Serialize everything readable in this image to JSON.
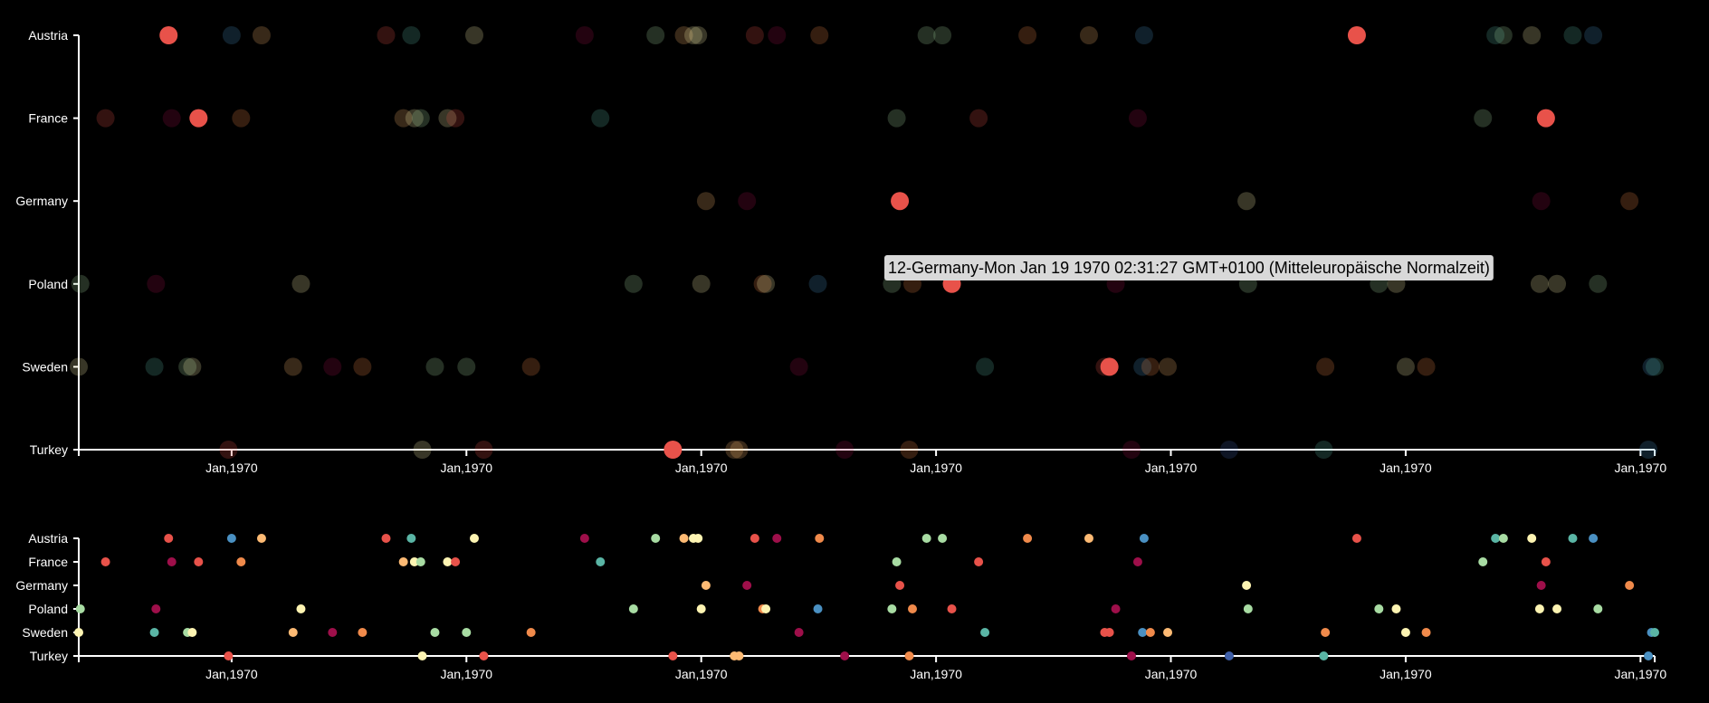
{
  "chart_data": {
    "type": "scatter",
    "title": "",
    "categories": [
      "Austria",
      "France",
      "Germany",
      "Poland",
      "Sweden",
      "Turkey"
    ],
    "x_tick_labels": [
      "Jan,1970",
      "Jan,1970",
      "Jan,1970",
      "Jan,1970",
      "Jan,1970",
      "Jan,1970",
      "Jan,1970"
    ],
    "x_range": [
      0,
      100
    ],
    "x_tick_positions": [
      9.7,
      24.6,
      39.5,
      54.4,
      69.3,
      84.2,
      99.1
    ],
    "colors": [
      "#e8524a",
      "#9e0f4a",
      "#f08a4b",
      "#fdba74",
      "#fdf4b2",
      "#a8dca3",
      "#5ab5a5",
      "#4a90c2",
      "#3f5fa8"
    ],
    "tooltip": "12-Germany-Mon Jan 19 1970 02:31:27 GMT+0100 (Mitteleuropäische Normalzeit)",
    "points": [
      {
        "cat": "Austria",
        "x": 5.7,
        "c": 0,
        "hl": true
      },
      {
        "cat": "Austria",
        "x": 9.7,
        "c": 7
      },
      {
        "cat": "Austria",
        "x": 11.6,
        "c": 3
      },
      {
        "cat": "Austria",
        "x": 19.5,
        "c": 0
      },
      {
        "cat": "Austria",
        "x": 21.1,
        "c": 6
      },
      {
        "cat": "Austria",
        "x": 25.1,
        "c": 4
      },
      {
        "cat": "Austria",
        "x": 32.1,
        "c": 1
      },
      {
        "cat": "Austria",
        "x": 36.6,
        "c": 5
      },
      {
        "cat": "Austria",
        "x": 38.4,
        "c": 3
      },
      {
        "cat": "Austria",
        "x": 39.0,
        "c": 4
      },
      {
        "cat": "Austria",
        "x": 39.3,
        "c": 4
      },
      {
        "cat": "Austria",
        "x": 42.9,
        "c": 0
      },
      {
        "cat": "Austria",
        "x": 44.3,
        "c": 1
      },
      {
        "cat": "Austria",
        "x": 47.0,
        "c": 2
      },
      {
        "cat": "Austria",
        "x": 53.8,
        "c": 5
      },
      {
        "cat": "Austria",
        "x": 54.8,
        "c": 5
      },
      {
        "cat": "Austria",
        "x": 60.2,
        "c": 2
      },
      {
        "cat": "Austria",
        "x": 64.1,
        "c": 3
      },
      {
        "cat": "Austria",
        "x": 67.6,
        "c": 7
      },
      {
        "cat": "Austria",
        "x": 81.1,
        "c": 0,
        "hl": true
      },
      {
        "cat": "Austria",
        "x": 89.9,
        "c": 6
      },
      {
        "cat": "Austria",
        "x": 90.4,
        "c": 5
      },
      {
        "cat": "Austria",
        "x": 92.2,
        "c": 4
      },
      {
        "cat": "Austria",
        "x": 94.8,
        "c": 6
      },
      {
        "cat": "Austria",
        "x": 96.1,
        "c": 7
      },
      {
        "cat": "France",
        "x": 1.7,
        "c": 0
      },
      {
        "cat": "France",
        "x": 5.9,
        "c": 1
      },
      {
        "cat": "France",
        "x": 7.6,
        "c": 0,
        "hl": true
      },
      {
        "cat": "France",
        "x": 10.3,
        "c": 2
      },
      {
        "cat": "France",
        "x": 20.6,
        "c": 3
      },
      {
        "cat": "France",
        "x": 21.3,
        "c": 4
      },
      {
        "cat": "France",
        "x": 21.7,
        "c": 5
      },
      {
        "cat": "France",
        "x": 23.4,
        "c": 4
      },
      {
        "cat": "France",
        "x": 23.9,
        "c": 0
      },
      {
        "cat": "France",
        "x": 33.1,
        "c": 6
      },
      {
        "cat": "France",
        "x": 51.9,
        "c": 5
      },
      {
        "cat": "France",
        "x": 57.1,
        "c": 0
      },
      {
        "cat": "France",
        "x": 67.2,
        "c": 1
      },
      {
        "cat": "France",
        "x": 89.1,
        "c": 5
      },
      {
        "cat": "France",
        "x": 93.1,
        "c": 0,
        "hl": true
      },
      {
        "cat": "Germany",
        "x": 39.8,
        "c": 3
      },
      {
        "cat": "Germany",
        "x": 42.4,
        "c": 1
      },
      {
        "cat": "Germany",
        "x": 52.1,
        "c": 0,
        "hl": true
      },
      {
        "cat": "Germany",
        "x": 74.1,
        "c": 4
      },
      {
        "cat": "Germany",
        "x": 92.8,
        "c": 1
      },
      {
        "cat": "Germany",
        "x": 98.4,
        "c": 2
      },
      {
        "cat": "Poland",
        "x": 0.1,
        "c": 5
      },
      {
        "cat": "Poland",
        "x": 4.9,
        "c": 1
      },
      {
        "cat": "Poland",
        "x": 14.1,
        "c": 4
      },
      {
        "cat": "Poland",
        "x": 35.2,
        "c": 5
      },
      {
        "cat": "Poland",
        "x": 39.5,
        "c": 4
      },
      {
        "cat": "Poland",
        "x": 43.4,
        "c": 2
      },
      {
        "cat": "Poland",
        "x": 43.6,
        "c": 4
      },
      {
        "cat": "Poland",
        "x": 46.9,
        "c": 7
      },
      {
        "cat": "Poland",
        "x": 51.6,
        "c": 5
      },
      {
        "cat": "Poland",
        "x": 52.9,
        "c": 2
      },
      {
        "cat": "Poland",
        "x": 55.4,
        "c": 0,
        "hl": true
      },
      {
        "cat": "Poland",
        "x": 65.8,
        "c": 1
      },
      {
        "cat": "Poland",
        "x": 74.2,
        "c": 5
      },
      {
        "cat": "Poland",
        "x": 82.5,
        "c": 5
      },
      {
        "cat": "Poland",
        "x": 83.6,
        "c": 4
      },
      {
        "cat": "Poland",
        "x": 92.7,
        "c": 4
      },
      {
        "cat": "Poland",
        "x": 93.8,
        "c": 4
      },
      {
        "cat": "Poland",
        "x": 96.4,
        "c": 5
      },
      {
        "cat": "Sweden",
        "x": 0.0,
        "c": 4
      },
      {
        "cat": "Sweden",
        "x": 4.8,
        "c": 6
      },
      {
        "cat": "Sweden",
        "x": 6.9,
        "c": 5
      },
      {
        "cat": "Sweden",
        "x": 7.2,
        "c": 4
      },
      {
        "cat": "Sweden",
        "x": 13.6,
        "c": 3
      },
      {
        "cat": "Sweden",
        "x": 16.1,
        "c": 1
      },
      {
        "cat": "Sweden",
        "x": 18.0,
        "c": 2
      },
      {
        "cat": "Sweden",
        "x": 22.6,
        "c": 5
      },
      {
        "cat": "Sweden",
        "x": 24.6,
        "c": 5
      },
      {
        "cat": "Sweden",
        "x": 28.7,
        "c": 2
      },
      {
        "cat": "Sweden",
        "x": 45.7,
        "c": 1
      },
      {
        "cat": "Sweden",
        "x": 57.5,
        "c": 6
      },
      {
        "cat": "Sweden",
        "x": 65.1,
        "c": 0
      },
      {
        "cat": "Sweden",
        "x": 65.4,
        "c": 0,
        "hl": true
      },
      {
        "cat": "Sweden",
        "x": 67.5,
        "c": 7
      },
      {
        "cat": "Sweden",
        "x": 68.0,
        "c": 2
      },
      {
        "cat": "Sweden",
        "x": 69.1,
        "c": 3
      },
      {
        "cat": "Sweden",
        "x": 79.1,
        "c": 2
      },
      {
        "cat": "Sweden",
        "x": 84.2,
        "c": 4
      },
      {
        "cat": "Sweden",
        "x": 85.5,
        "c": 2
      },
      {
        "cat": "Sweden",
        "x": 99.8,
        "c": 7
      },
      {
        "cat": "Sweden",
        "x": 100.0,
        "c": 6
      },
      {
        "cat": "Turkey",
        "x": 9.5,
        "c": 0
      },
      {
        "cat": "Turkey",
        "x": 21.8,
        "c": 4
      },
      {
        "cat": "Turkey",
        "x": 25.7,
        "c": 0
      },
      {
        "cat": "Turkey",
        "x": 37.7,
        "c": 0,
        "hl": true
      },
      {
        "cat": "Turkey",
        "x": 41.6,
        "c": 3
      },
      {
        "cat": "Turkey",
        "x": 41.9,
        "c": 3
      },
      {
        "cat": "Turkey",
        "x": 48.6,
        "c": 1
      },
      {
        "cat": "Turkey",
        "x": 52.7,
        "c": 2
      },
      {
        "cat": "Turkey",
        "x": 66.8,
        "c": 1
      },
      {
        "cat": "Turkey",
        "x": 73.0,
        "c": 8
      },
      {
        "cat": "Turkey",
        "x": 79.0,
        "c": 6
      },
      {
        "cat": "Turkey",
        "x": 99.6,
        "c": 7
      }
    ]
  }
}
